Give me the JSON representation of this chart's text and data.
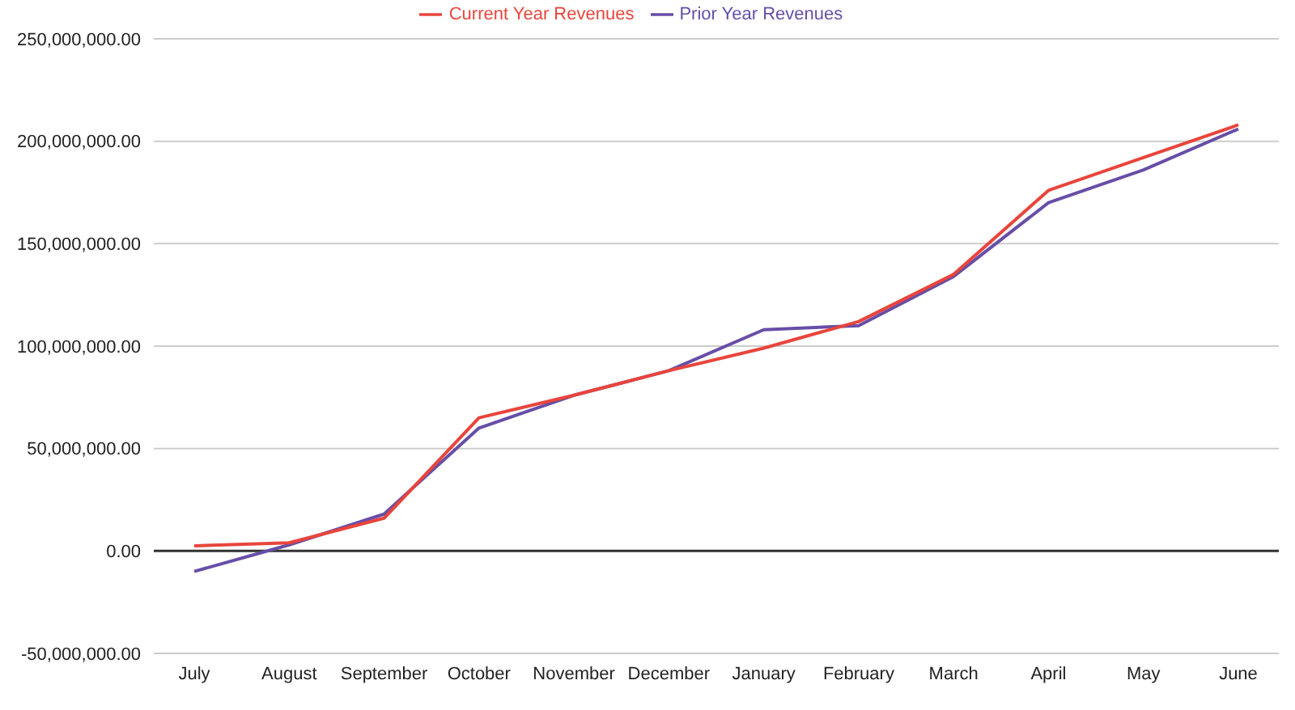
{
  "chart_data": {
    "type": "line",
    "categories": [
      "July",
      "August",
      "September",
      "October",
      "November",
      "December",
      "January",
      "February",
      "March",
      "April",
      "May",
      "June"
    ],
    "series": [
      {
        "name": "Prior Year Revenues",
        "color": "#674ea7",
        "values": [
          -10000000,
          3000000,
          18000000,
          60000000,
          76000000,
          88000000,
          108000000,
          110000000,
          134000000,
          170000000,
          186000000,
          206000000
        ]
      },
      {
        "name": "Current Year Revenues",
        "color": "#e8453c",
        "values": [
          2500000,
          4000000,
          16000000,
          65000000,
          76000000,
          88000000,
          99000000,
          112000000,
          135000000,
          176000000,
          192000000,
          208000000
        ]
      }
    ],
    "ylim": [
      -50000000,
      250000000
    ],
    "yticks": [
      {
        "value": -50000000,
        "label": "-50,000,000.00"
      },
      {
        "value": 0,
        "label": "0.00"
      },
      {
        "value": 50000000,
        "label": "50,000,000.00"
      },
      {
        "value": 100000000,
        "label": "100,000,000.00"
      },
      {
        "value": 150000000,
        "label": "150,000,000.00"
      },
      {
        "value": 200000000,
        "label": "200,000,000.00"
      },
      {
        "value": 250000000,
        "label": "250,000,000.00"
      }
    ],
    "ref_lines": [
      {
        "axis": "y",
        "value": 0,
        "color": "#333333"
      }
    ],
    "grid": "y",
    "legend": "top",
    "marker": "none",
    "line_style": "solid"
  }
}
